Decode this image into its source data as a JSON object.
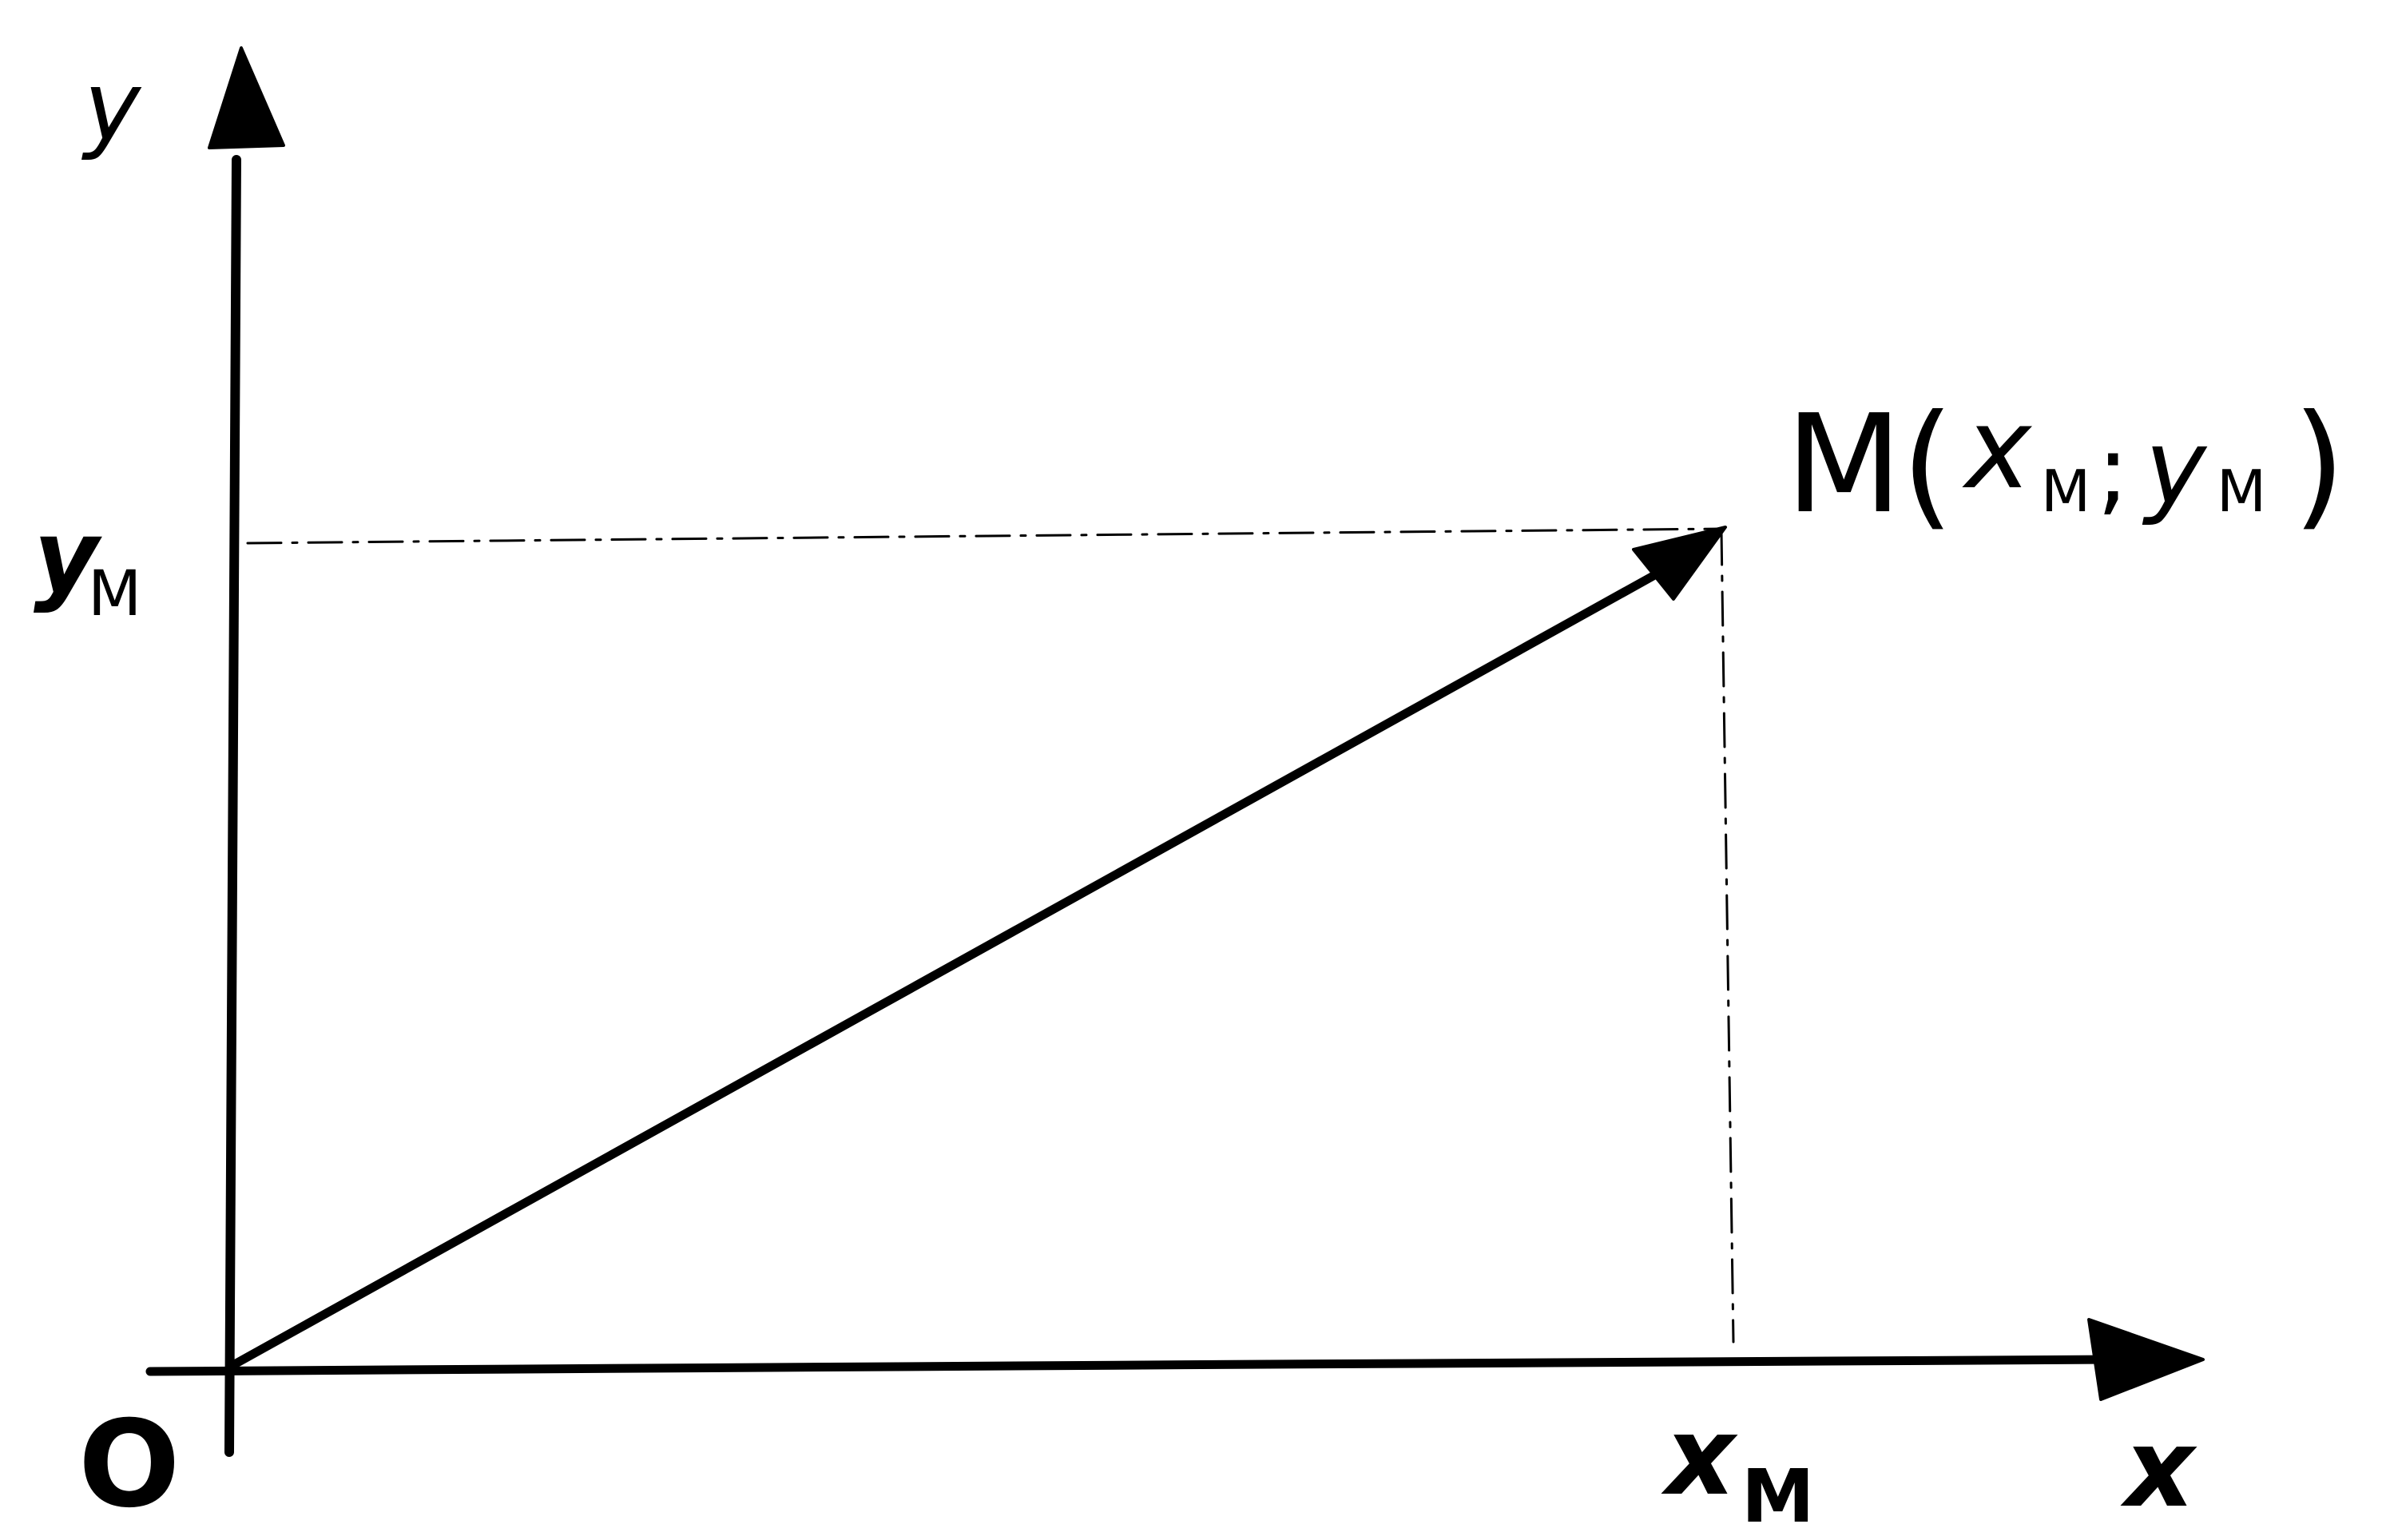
{
  "diagram": {
    "axes": {
      "x_label": "x",
      "y_label": "y",
      "origin_label": "O"
    },
    "ticks": {
      "x_tick": {
        "main": "x",
        "sub": "M"
      },
      "y_tick": {
        "main": "y",
        "sub": "M"
      }
    },
    "point": {
      "name": "M",
      "open": "(",
      "x_main": "x",
      "x_sub": "M",
      "separator": ";",
      "y_main": "y",
      "y_sub": "M",
      "close": ")"
    },
    "colors": {
      "ink": "#000000",
      "background": "#ffffff"
    }
  }
}
